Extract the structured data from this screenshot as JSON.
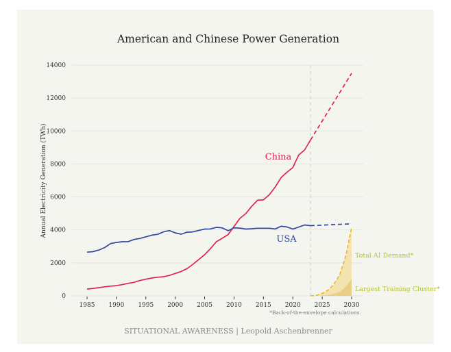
{
  "chart_data": {
    "type": "line",
    "title": "American and Chinese Power Generation",
    "xlabel": "",
    "ylabel": "Annual Electricity Generation (TWh)",
    "xlim": [
      1985,
      2030
    ],
    "ylim": [
      0,
      14000
    ],
    "xticks": [
      1985,
      1990,
      1995,
      2000,
      2005,
      2010,
      2015,
      2020,
      2025,
      2030
    ],
    "yticks": [
      0,
      2000,
      4000,
      6000,
      8000,
      10000,
      12000,
      14000
    ],
    "grid": "horizontal",
    "projection_start": 2023,
    "series": [
      {
        "name": "China",
        "color": "#e0204f",
        "x": [
          1985,
          1986,
          1987,
          1988,
          1989,
          1990,
          1991,
          1992,
          1993,
          1994,
          1995,
          1996,
          1997,
          1998,
          1999,
          2000,
          2001,
          2002,
          2003,
          2004,
          2005,
          2006,
          2007,
          2008,
          2009,
          2010,
          2011,
          2012,
          2013,
          2014,
          2015,
          2016,
          2017,
          2018,
          2019,
          2020,
          2021,
          2022,
          2023
        ],
        "values": [
          410,
          450,
          500,
          550,
          590,
          620,
          680,
          760,
          820,
          930,
          1010,
          1080,
          1130,
          1160,
          1240,
          1360,
          1480,
          1650,
          1910,
          2200,
          2500,
          2870,
          3280,
          3500,
          3720,
          4210,
          4700,
          4990,
          5430,
          5800,
          5820,
          6130,
          6600,
          7170,
          7500,
          7780,
          8540,
          8850,
          9450
        ],
        "projection": {
          "x": [
            2023,
            2030
          ],
          "values": [
            9450,
            13500
          ]
        }
      },
      {
        "name": "USA",
        "color": "#2f45a0",
        "x": [
          1985,
          1986,
          1987,
          1988,
          1989,
          1990,
          1991,
          1992,
          1993,
          1994,
          1995,
          1996,
          1997,
          1998,
          1999,
          2000,
          2001,
          2002,
          2003,
          2004,
          2005,
          2006,
          2007,
          2008,
          2009,
          2010,
          2011,
          2012,
          2013,
          2014,
          2015,
          2016,
          2017,
          2018,
          2019,
          2020,
          2021,
          2022,
          2023
        ],
        "values": [
          2650,
          2680,
          2780,
          2930,
          3170,
          3240,
          3280,
          3290,
          3420,
          3480,
          3580,
          3680,
          3730,
          3880,
          3960,
          3820,
          3740,
          3860,
          3880,
          3970,
          4050,
          4060,
          4160,
          4120,
          3950,
          4130,
          4110,
          4050,
          4070,
          4100,
          4100,
          4100,
          4060,
          4220,
          4180,
          4050,
          4170,
          4300,
          4260
        ],
        "projection": {
          "x": [
            2023,
            2030
          ],
          "values": [
            4260,
            4370
          ]
        }
      },
      {
        "name": "Total AI Demand*",
        "color": "#f0b323",
        "label_color": "#b5c22a",
        "dashed": true,
        "x": [
          2023,
          2024,
          2025,
          2026,
          2027,
          2028,
          2029,
          2030
        ],
        "values": [
          0,
          30,
          150,
          350,
          700,
          1300,
          2400,
          4150
        ]
      },
      {
        "name": "Largest Training Cluster*",
        "color": "#e8cf85",
        "label_color": "#b5c22a",
        "area": true,
        "x": [
          2023,
          2024,
          2025,
          2026,
          2027,
          2028,
          2029,
          2030
        ],
        "values": [
          0,
          0,
          10,
          50,
          120,
          250,
          550,
          1000
        ]
      }
    ],
    "annotations": {
      "footnote": "*Back-of-the-envelope calculations."
    }
  },
  "footer": "SITUATIONAL AWARENESS | Leopold Aschenbrenner"
}
